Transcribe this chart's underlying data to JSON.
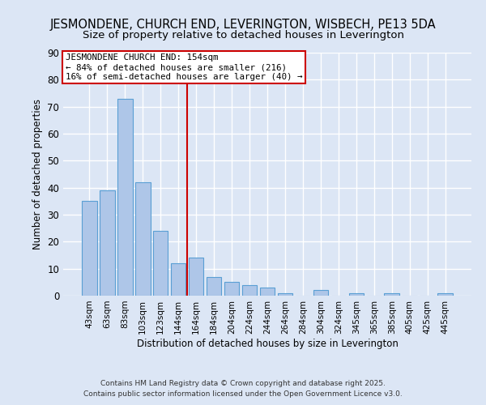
{
  "title": "JESMONDENE, CHURCH END, LEVERINGTON, WISBECH, PE13 5DA",
  "subtitle": "Size of property relative to detached houses in Leverington",
  "xlabel": "Distribution of detached houses by size in Leverington",
  "ylabel": "Number of detached properties",
  "categories": [
    "43sqm",
    "63sqm",
    "83sqm",
    "103sqm",
    "123sqm",
    "144sqm",
    "164sqm",
    "184sqm",
    "204sqm",
    "224sqm",
    "244sqm",
    "264sqm",
    "284sqm",
    "304sqm",
    "324sqm",
    "345sqm",
    "365sqm",
    "385sqm",
    "405sqm",
    "425sqm",
    "445sqm"
  ],
  "values": [
    35,
    39,
    73,
    42,
    24,
    12,
    14,
    7,
    5,
    4,
    3,
    1,
    0,
    2,
    0,
    1,
    0,
    1,
    0,
    0,
    1
  ],
  "bar_color": "#aec6e8",
  "bar_edge_color": "#5a9fd4",
  "background_color": "#dce6f5",
  "grid_color": "#ffffff",
  "vline_x": 6,
  "vline_color": "#cc0000",
  "annotation_title": "JESMONDENE CHURCH END: 154sqm",
  "annotation_line1": "← 84% of detached houses are smaller (216)",
  "annotation_line2": "16% of semi-detached houses are larger (40) →",
  "annotation_box_color": "#ffffff",
  "annotation_box_edge_color": "#cc0000",
  "ylim": [
    0,
    90
  ],
  "yticks": [
    0,
    10,
    20,
    30,
    40,
    50,
    60,
    70,
    80,
    90
  ],
  "footer1": "Contains HM Land Registry data © Crown copyright and database right 2025.",
  "footer2": "Contains public sector information licensed under the Open Government Licence v3.0.",
  "title_fontsize": 10.5,
  "subtitle_fontsize": 9.5
}
